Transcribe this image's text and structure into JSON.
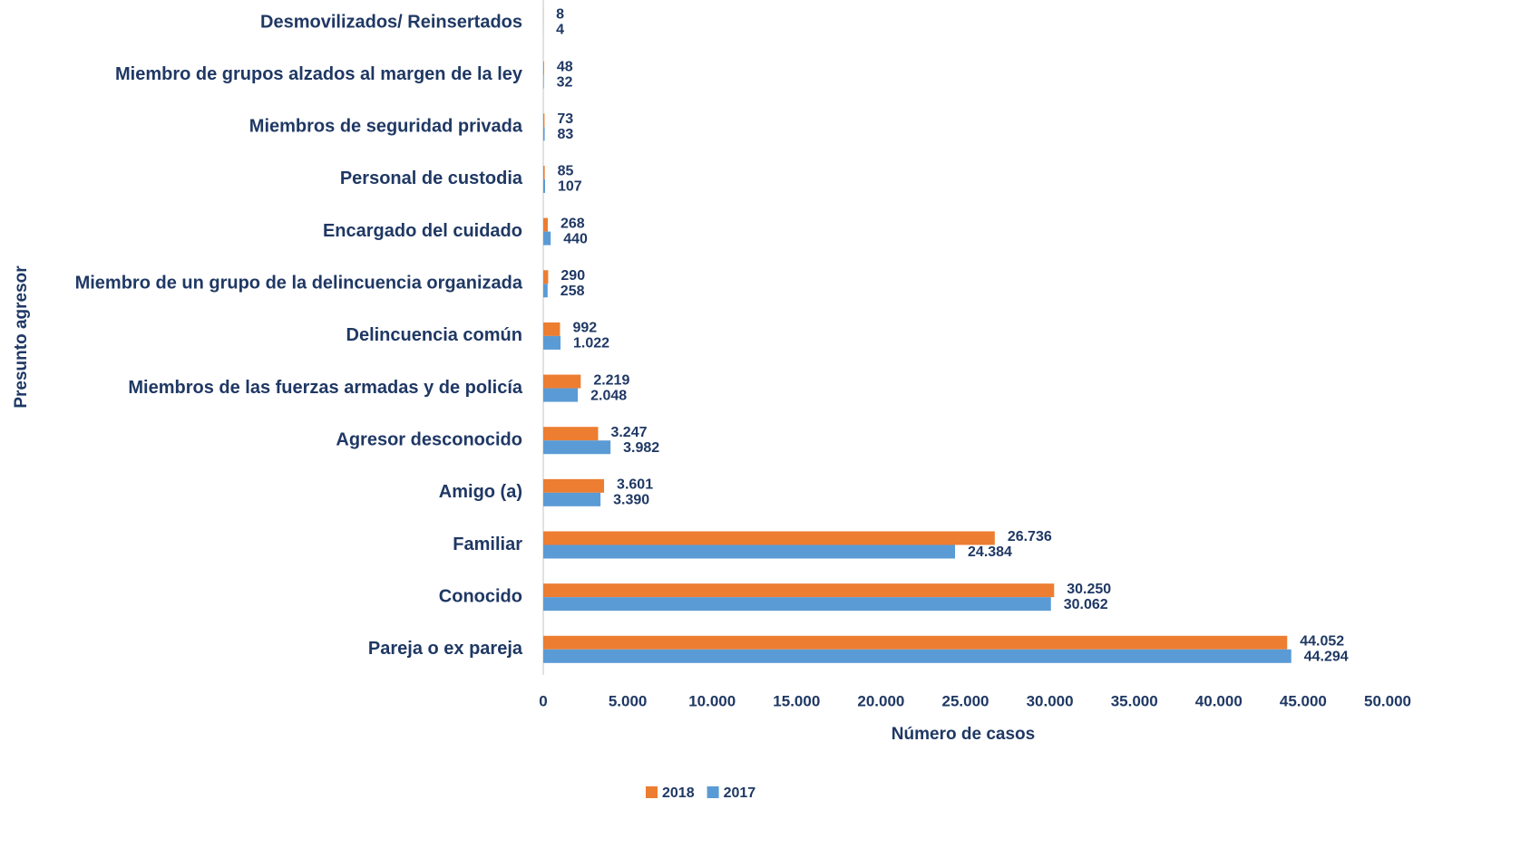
{
  "chart_data": {
    "type": "bar",
    "orientation": "horizontal",
    "x_label": "Número de casos",
    "y_label": "Presunto agresor",
    "categories": [
      "Desmovilizados/ Reinsertados",
      "Miembro de grupos alzados al margen de la ley",
      "Miembros de seguridad privada",
      "Personal de custodia",
      "Encargado del cuidado",
      "Miembro de un grupo de la delincuencia organizada",
      "Delincuencia común",
      "Miembros de las fuerzas armadas y de policía",
      "Agresor desconocido",
      "Amigo (a)",
      "Familiar",
      "Conocido",
      "Pareja o ex pareja"
    ],
    "series": [
      {
        "name": "2018",
        "color": "#ed7d31",
        "values": [
          8,
          48,
          73,
          85,
          268,
          290,
          992,
          2219,
          3247,
          3601,
          26736,
          30250,
          44052
        ],
        "value_labels": [
          "8",
          "48",
          "73",
          "85",
          "268",
          "290",
          "992",
          "2.219",
          "3.247",
          "3.601",
          "26.736",
          "30.250",
          "44.052"
        ]
      },
      {
        "name": "2017",
        "color": "#5b9bd5",
        "values": [
          4,
          32,
          83,
          107,
          440,
          258,
          1022,
          2048,
          3982,
          3390,
          24384,
          30062,
          44294
        ],
        "value_labels": [
          "4",
          "32",
          "83",
          "107",
          "440",
          "258",
          "1.022",
          "2.048",
          "3.982",
          "3.390",
          "24.384",
          "30.062",
          "44.294"
        ]
      }
    ],
    "xlim": [
      0,
      50000
    ],
    "xticks": [
      0,
      {
        "value": 5000,
        "label": "5.000"
      },
      {
        "value": 10000,
        "label": "10.000"
      },
      {
        "value": 15000,
        "label": "15.000"
      },
      {
        "value": 20000,
        "label": "20.000"
      },
      {
        "value": 25000,
        "label": "25.000"
      },
      {
        "value": 30000,
        "label": "30.000"
      },
      {
        "value": 35000,
        "label": "35.000"
      },
      {
        "value": 40000,
        "label": "40.000"
      },
      {
        "value": 45000,
        "label": "45.000"
      },
      {
        "value": 50000,
        "label": "50.000"
      }
    ],
    "grid": false,
    "legend": "bottom"
  }
}
